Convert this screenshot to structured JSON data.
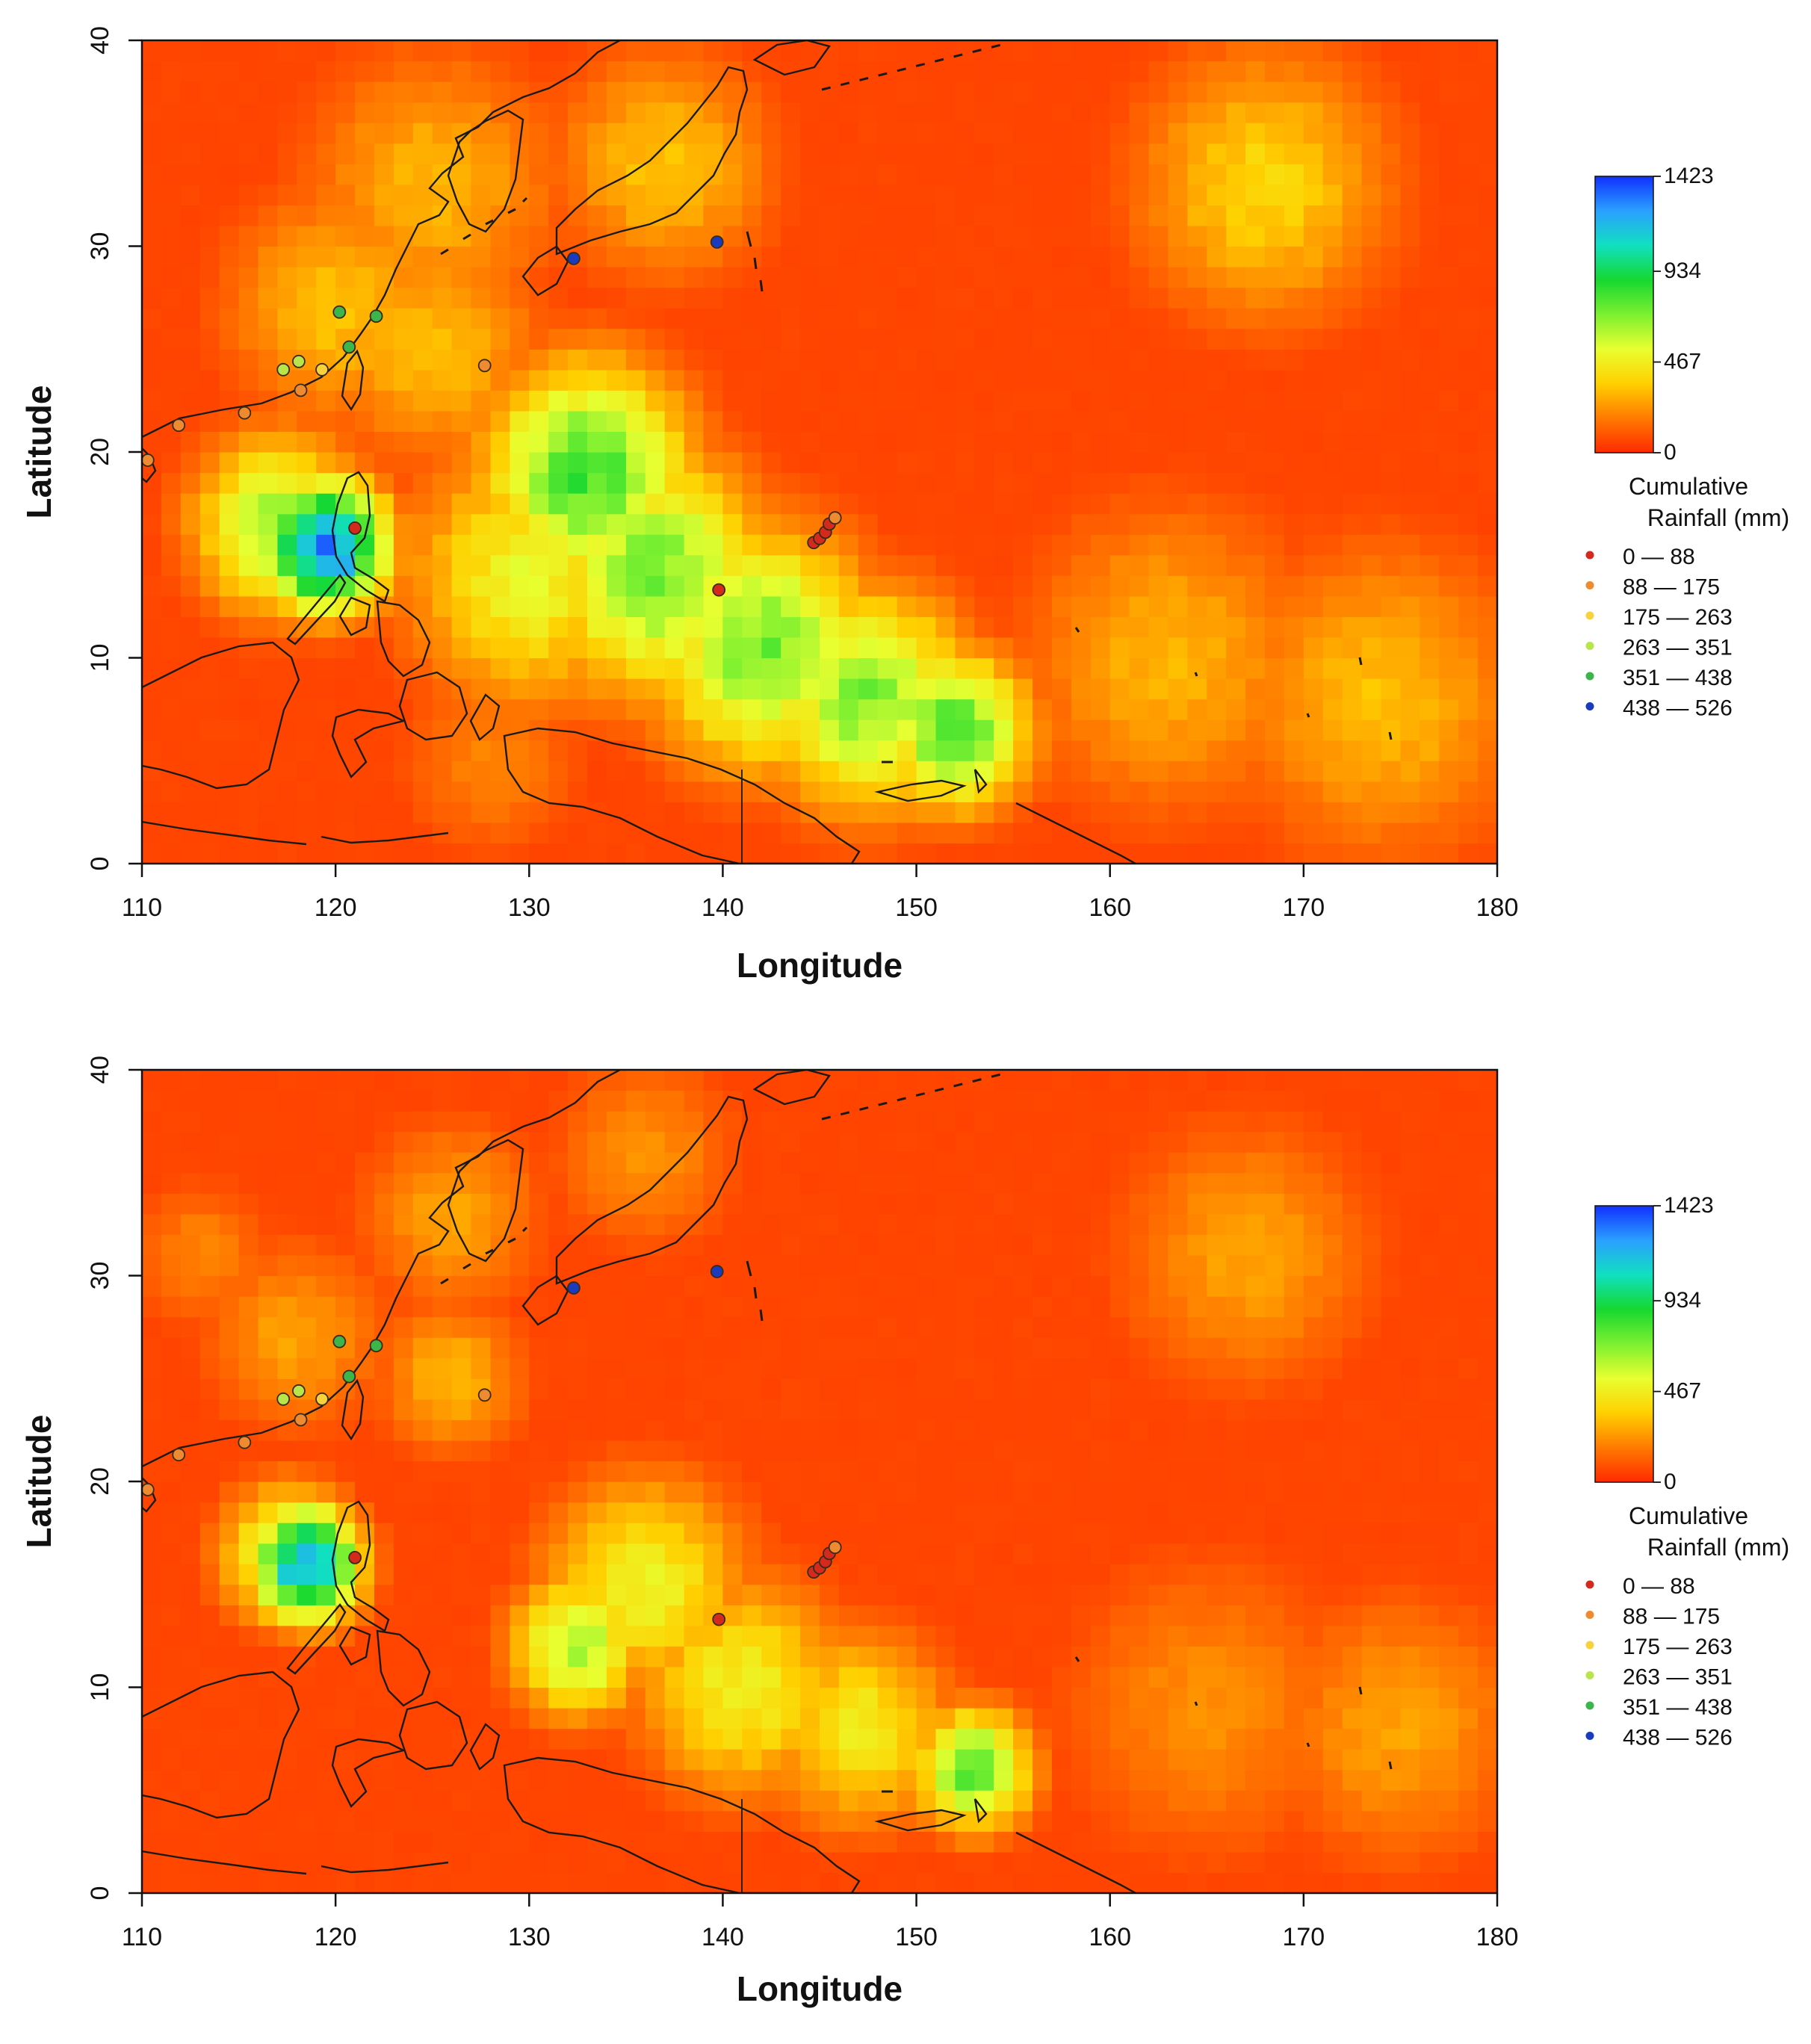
{
  "chart_data": [
    {
      "type": "heatmap",
      "xlabel": "Longitude",
      "ylabel": "Latitude",
      "xlim": [
        110,
        180
      ],
      "ylim": [
        0,
        40
      ],
      "x_ticks": [
        "110",
        "120",
        "130",
        "140",
        "150",
        "160",
        "170",
        "180"
      ],
      "y_ticks": [
        "0",
        "10",
        "20",
        "30",
        "40"
      ],
      "colorbar": {
        "title_line1": "Cumulative",
        "title_line2": "Rainfall (mm)",
        "ticks": [
          "0",
          "467",
          "934",
          "1423"
        ],
        "tick_values": [
          0,
          467,
          934,
          1423
        ],
        "range": [
          0,
          1423
        ],
        "colors": [
          "#ff2a00",
          "#ff7a00",
          "#ffd000",
          "#e8ff30",
          "#7cf030",
          "#16d830",
          "#10e0c0",
          "#2aa0ff",
          "#1030ff"
        ]
      },
      "legend": [
        {
          "label": "0 — 88",
          "color": "#d42a1e"
        },
        {
          "label": "88 — 175",
          "color": "#ee8a30"
        },
        {
          "label": "175 — 263",
          "color": "#f7d23a"
        },
        {
          "label": "263 — 351",
          "color": "#b8e54a"
        },
        {
          "label": "351 — 438",
          "color": "#3cb54a"
        },
        {
          "label": "438 — 526",
          "color": "#1a3bbd"
        }
      ],
      "points": [
        {
          "lon": 111.9,
          "lat": 21.3,
          "bin": 1
        },
        {
          "lon": 115.3,
          "lat": 21.9,
          "bin": 1
        },
        {
          "lon": 118.2,
          "lat": 23.0,
          "bin": 1
        },
        {
          "lon": 119.3,
          "lat": 24.0,
          "bin": 2
        },
        {
          "lon": 117.3,
          "lat": 24.0,
          "bin": 3
        },
        {
          "lon": 118.1,
          "lat": 24.4,
          "bin": 3
        },
        {
          "lon": 120.7,
          "lat": 25.1,
          "bin": 4
        },
        {
          "lon": 120.2,
          "lat": 26.8,
          "bin": 4
        },
        {
          "lon": 122.1,
          "lat": 26.6,
          "bin": 4
        },
        {
          "lon": 110.3,
          "lat": 19.6,
          "bin": 1
        },
        {
          "lon": 121.0,
          "lat": 16.3,
          "bin": 0
        },
        {
          "lon": 127.7,
          "lat": 24.2,
          "bin": 1
        },
        {
          "lon": 132.3,
          "lat": 29.4,
          "bin": 5
        },
        {
          "lon": 139.7,
          "lat": 30.2,
          "bin": 5
        },
        {
          "lon": 139.8,
          "lat": 13.3,
          "bin": 0
        },
        {
          "lon": 144.7,
          "lat": 15.6,
          "bin": 0
        },
        {
          "lon": 145.0,
          "lat": 15.8,
          "bin": 0
        },
        {
          "lon": 145.3,
          "lat": 16.1,
          "bin": 0
        },
        {
          "lon": 145.5,
          "lat": 16.5,
          "bin": 0
        },
        {
          "lon": 145.8,
          "lat": 16.8,
          "bin": 1
        }
      ],
      "hotspots": [
        {
          "lon": 119.5,
          "lat": 15.5,
          "r": 3.2,
          "v": 1350
        },
        {
          "lon": 117.0,
          "lat": 16.5,
          "r": 4.5,
          "v": 650
        },
        {
          "lon": 133.0,
          "lat": 19.0,
          "r": 5.5,
          "v": 820
        },
        {
          "lon": 136.5,
          "lat": 14.0,
          "r": 6.0,
          "v": 720
        },
        {
          "lon": 142.0,
          "lat": 10.5,
          "r": 6.0,
          "v": 720
        },
        {
          "lon": 147.5,
          "lat": 8.0,
          "r": 5.5,
          "v": 700
        },
        {
          "lon": 152.0,
          "lat": 6.5,
          "r": 4.0,
          "v": 780
        },
        {
          "lon": 130.0,
          "lat": 14.0,
          "r": 6.5,
          "v": 500
        },
        {
          "lon": 125.0,
          "lat": 25.0,
          "r": 6.0,
          "v": 320
        },
        {
          "lon": 120.0,
          "lat": 27.0,
          "r": 6.0,
          "v": 330
        },
        {
          "lon": 125.0,
          "lat": 33.0,
          "r": 7.0,
          "v": 300
        },
        {
          "lon": 137.0,
          "lat": 34.0,
          "r": 6.0,
          "v": 330
        },
        {
          "lon": 168.0,
          "lat": 33.0,
          "r": 7.0,
          "v": 380
        },
        {
          "lon": 163.0,
          "lat": 10.0,
          "r": 8.0,
          "v": 300
        },
        {
          "lon": 174.0,
          "lat": 8.0,
          "r": 8.0,
          "v": 320
        },
        {
          "lon": 128.0,
          "lat": 5.0,
          "r": 5.0,
          "v": 200
        }
      ]
    },
    {
      "type": "heatmap",
      "xlabel": "Longitude",
      "ylabel": "Latitude",
      "xlim": [
        110,
        180
      ],
      "ylim": [
        0,
        40
      ],
      "x_ticks": [
        "110",
        "120",
        "130",
        "140",
        "150",
        "160",
        "170",
        "180"
      ],
      "y_ticks": [
        "0",
        "10",
        "20",
        "30",
        "40"
      ],
      "colorbar": {
        "title_line1": "Cumulative",
        "title_line2": "Rainfall (mm)",
        "ticks": [
          "0",
          "467",
          "934",
          "1423"
        ],
        "tick_values": [
          0,
          467,
          934,
          1423
        ],
        "range": [
          0,
          1423
        ],
        "colors": [
          "#ff2a00",
          "#ff7a00",
          "#ffd000",
          "#e8ff30",
          "#7cf030",
          "#16d830",
          "#10e0c0",
          "#2aa0ff",
          "#1030ff"
        ]
      },
      "legend": [
        {
          "label": "0 — 88",
          "color": "#d42a1e"
        },
        {
          "label": "88 — 175",
          "color": "#ee8a30"
        },
        {
          "label": "175 — 263",
          "color": "#f7d23a"
        },
        {
          "label": "263 — 351",
          "color": "#b8e54a"
        },
        {
          "label": "351 — 438",
          "color": "#3cb54a"
        },
        {
          "label": "438 — 526",
          "color": "#1a3bbd"
        }
      ],
      "points": [
        {
          "lon": 111.9,
          "lat": 21.3,
          "bin": 1
        },
        {
          "lon": 115.3,
          "lat": 21.9,
          "bin": 1
        },
        {
          "lon": 118.2,
          "lat": 23.0,
          "bin": 1
        },
        {
          "lon": 119.3,
          "lat": 24.0,
          "bin": 2
        },
        {
          "lon": 117.3,
          "lat": 24.0,
          "bin": 3
        },
        {
          "lon": 118.1,
          "lat": 24.4,
          "bin": 3
        },
        {
          "lon": 120.7,
          "lat": 25.1,
          "bin": 4
        },
        {
          "lon": 120.2,
          "lat": 26.8,
          "bin": 4
        },
        {
          "lon": 122.1,
          "lat": 26.6,
          "bin": 4
        },
        {
          "lon": 110.3,
          "lat": 19.6,
          "bin": 1
        },
        {
          "lon": 121.0,
          "lat": 16.3,
          "bin": 0
        },
        {
          "lon": 127.7,
          "lat": 24.2,
          "bin": 1
        },
        {
          "lon": 132.3,
          "lat": 29.4,
          "bin": 5
        },
        {
          "lon": 139.7,
          "lat": 30.2,
          "bin": 5
        },
        {
          "lon": 139.8,
          "lat": 13.3,
          "bin": 0
        },
        {
          "lon": 144.7,
          "lat": 15.6,
          "bin": 0
        },
        {
          "lon": 145.0,
          "lat": 15.8,
          "bin": 0
        },
        {
          "lon": 145.3,
          "lat": 16.1,
          "bin": 0
        },
        {
          "lon": 145.5,
          "lat": 16.5,
          "bin": 0
        },
        {
          "lon": 145.8,
          "lat": 16.8,
          "bin": 1
        }
      ],
      "hotspots": [
        {
          "lon": 118.5,
          "lat": 16.0,
          "r": 2.8,
          "v": 1250
        },
        {
          "lon": 117.5,
          "lat": 16.5,
          "r": 3.5,
          "v": 600
        },
        {
          "lon": 132.5,
          "lat": 12.0,
          "r": 3.5,
          "v": 650
        },
        {
          "lon": 136.0,
          "lat": 15.0,
          "r": 5.5,
          "v": 480
        },
        {
          "lon": 141.0,
          "lat": 10.0,
          "r": 5.5,
          "v": 480
        },
        {
          "lon": 147.0,
          "lat": 8.0,
          "r": 5.0,
          "v": 450
        },
        {
          "lon": 153.0,
          "lat": 6.0,
          "r": 3.0,
          "v": 800
        },
        {
          "lon": 126.0,
          "lat": 25.0,
          "r": 4.0,
          "v": 300
        },
        {
          "lon": 118.0,
          "lat": 27.0,
          "r": 5.0,
          "v": 260
        },
        {
          "lon": 126.0,
          "lat": 33.0,
          "r": 5.0,
          "v": 260
        },
        {
          "lon": 136.0,
          "lat": 36.0,
          "r": 5.0,
          "v": 230
        },
        {
          "lon": 167.0,
          "lat": 31.0,
          "r": 7.0,
          "v": 260
        },
        {
          "lon": 165.0,
          "lat": 9.0,
          "r": 8.0,
          "v": 220
        },
        {
          "lon": 175.0,
          "lat": 8.0,
          "r": 7.0,
          "v": 260
        },
        {
          "lon": 113.0,
          "lat": 31.0,
          "r": 4.0,
          "v": 200
        }
      ]
    }
  ]
}
